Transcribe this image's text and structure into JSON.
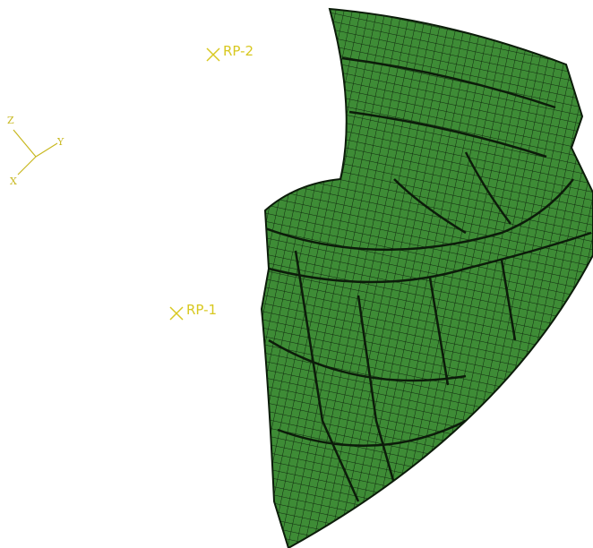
{
  "viewport": {
    "reference_points": [
      {
        "label": "RP-2"
      },
      {
        "label": "RP-1"
      }
    ],
    "triad": {
      "z": "Z",
      "y": "Y",
      "x": "X"
    }
  }
}
